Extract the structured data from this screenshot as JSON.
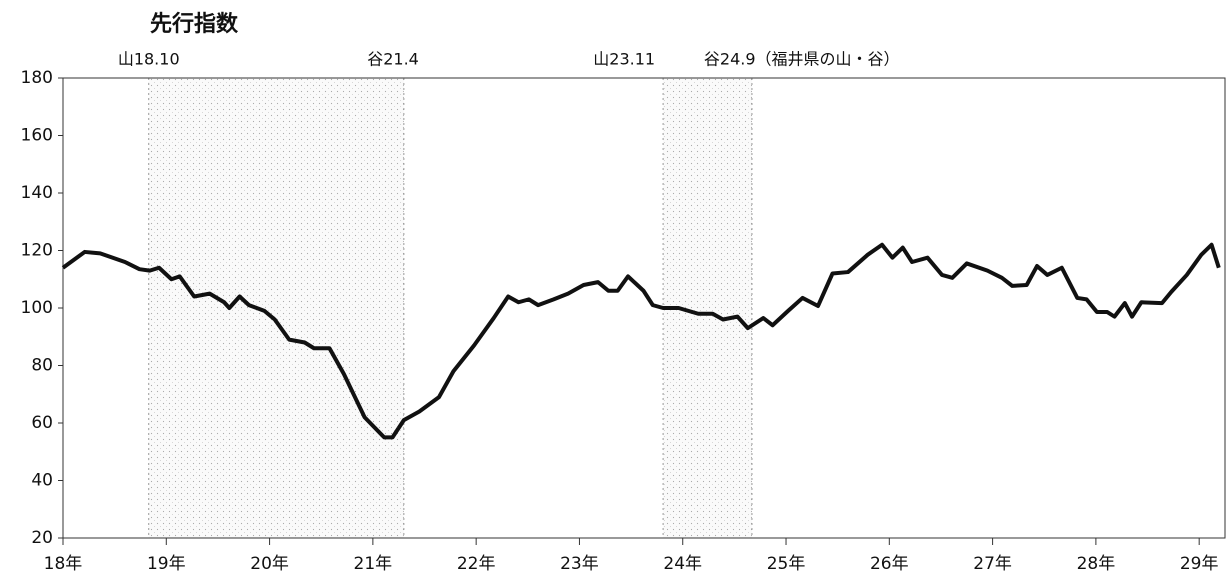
{
  "chart_data": {
    "type": "line",
    "title": "先行指数",
    "annotations": [
      {
        "label": "山18.10",
        "x": 18.83
      },
      {
        "label": "谷21.4",
        "x": 21.3
      },
      {
        "label": "山23.11",
        "x": 23.81
      },
      {
        "label": "谷24.9（福井県の山・谷）",
        "x": 24.67
      }
    ],
    "shading": [
      [
        18.83,
        21.3
      ],
      [
        23.81,
        24.67
      ]
    ],
    "series": [
      {
        "color": "#111111",
        "x": [
          18.0,
          18.21,
          18.36,
          18.6,
          18.74,
          18.84,
          18.93,
          19.05,
          19.13,
          19.27,
          19.42,
          19.56,
          19.61,
          19.71,
          19.8,
          19.95,
          20.05,
          20.19,
          20.34,
          20.43,
          20.58,
          20.72,
          20.92,
          21.11,
          21.19,
          21.3,
          21.45,
          21.64,
          21.78,
          21.98,
          22.17,
          22.31,
          22.41,
          22.51,
          22.6,
          22.75,
          22.89,
          23.04,
          23.18,
          23.28,
          23.37,
          23.47,
          23.62,
          23.71,
          23.81,
          23.96,
          24.15,
          24.29,
          24.39,
          24.53,
          24.63,
          24.78,
          24.87,
          25.02,
          25.16,
          25.31,
          25.45,
          25.6,
          25.79,
          25.93,
          26.03,
          26.13,
          26.22,
          26.37,
          26.51,
          26.61,
          26.75,
          26.95,
          27.09,
          27.19,
          27.33,
          27.43,
          27.53,
          27.67,
          27.82,
          27.91,
          28.01,
          28.11,
          28.18,
          28.28,
          28.35,
          28.44,
          28.64,
          28.73,
          28.88,
          29.02,
          29.12,
          29.19
        ],
        "values": [
          114,
          119.5,
          119,
          116,
          113.5,
          113,
          114,
          110,
          111,
          104,
          105,
          102,
          100,
          104,
          101,
          99,
          96,
          89,
          88,
          86,
          86,
          77,
          62,
          55,
          55,
          61,
          64,
          69,
          78,
          87,
          96.5,
          104,
          102,
          103,
          101,
          103,
          105,
          108,
          109,
          106,
          106,
          111,
          106,
          101,
          100,
          100,
          98,
          98,
          96,
          97,
          93,
          96.5,
          94,
          99,
          103.5,
          100.7,
          112,
          112.5,
          118.5,
          122,
          117.5,
          121,
          116,
          117.5,
          111.5,
          110.5,
          115.5,
          113,
          110.5,
          107.7,
          108,
          114.6,
          111.5,
          114,
          103.5,
          103,
          98.6,
          98.6,
          97,
          101.7,
          97,
          102,
          101.7,
          105.6,
          111.5,
          118.5,
          122,
          114
        ]
      }
    ],
    "xlim": [
      18,
      29.25
    ],
    "xticks": [
      {
        "value": 18,
        "label": "18年"
      },
      {
        "value": 19,
        "label": "19年"
      },
      {
        "value": 20,
        "label": "20年"
      },
      {
        "value": 21,
        "label": "21年"
      },
      {
        "value": 22,
        "label": "22年"
      },
      {
        "value": 23,
        "label": "23年"
      },
      {
        "value": 24,
        "label": "24年"
      },
      {
        "value": 25,
        "label": "25年"
      },
      {
        "value": 26,
        "label": "26年"
      },
      {
        "value": 27,
        "label": "27年"
      },
      {
        "value": 28,
        "label": "28年"
      },
      {
        "value": 29,
        "label": "29年"
      }
    ],
    "ylim": [
      20,
      180
    ],
    "yticks": [
      20,
      40,
      60,
      80,
      100,
      120,
      140,
      160,
      180
    ]
  }
}
